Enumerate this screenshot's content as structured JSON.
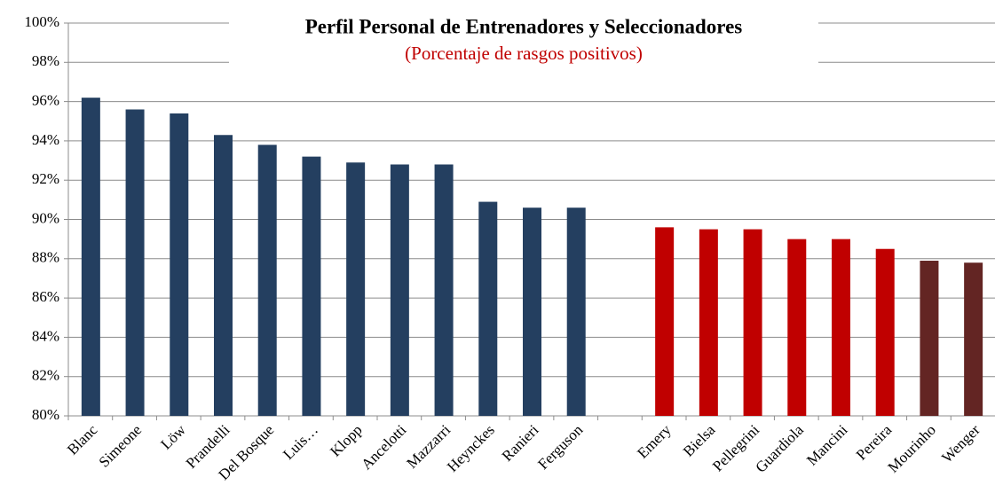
{
  "chart_data": {
    "type": "bar",
    "title": "Perfil Personal de Entrenadores y Seleccionadores",
    "subtitle": "(Porcentaje de rasgos positivos)",
    "categories": [
      "Blanc",
      "Simeone",
      "Löw",
      "Prandelli",
      "Del Bosque",
      "Luis…",
      "Klopp",
      "Ancelotti",
      "Mazzarri",
      "Heynckes",
      "Ranieri",
      "Ferguson",
      null,
      "Emery",
      "Bielsa",
      "Pellegrini",
      "Guardiola",
      "Mancini",
      "Pereira",
      "Mourinho",
      "Wenger"
    ],
    "values": [
      96.2,
      95.6,
      95.4,
      94.3,
      93.8,
      93.2,
      92.9,
      92.8,
      92.8,
      90.9,
      90.6,
      90.6,
      null,
      89.6,
      89.5,
      89.5,
      89.0,
      89.0,
      88.5,
      87.9,
      87.8
    ],
    "colors": [
      "#243f60",
      "#243f60",
      "#243f60",
      "#243f60",
      "#243f60",
      "#243f60",
      "#243f60",
      "#243f60",
      "#243f60",
      "#243f60",
      "#243f60",
      "#243f60",
      null,
      "#c00000",
      "#c00000",
      "#c00000",
      "#c00000",
      "#c00000",
      "#c00000",
      "#632523",
      "#632523"
    ],
    "ylim": [
      80,
      100
    ],
    "yticks": [
      {
        "value": 80,
        "label": "80%"
      },
      {
        "value": 82,
        "label": "82%"
      },
      {
        "value": 84,
        "label": "84%"
      },
      {
        "value": 86,
        "label": "86%"
      },
      {
        "value": 88,
        "label": "88%"
      },
      {
        "value": 90,
        "label": "90%"
      },
      {
        "value": 92,
        "label": "92%"
      },
      {
        "value": 94,
        "label": "94%"
      },
      {
        "value": 96,
        "label": "96%"
      },
      {
        "value": 98,
        "label": "98%"
      },
      {
        "value": 100,
        "label": "100%"
      }
    ],
    "grid": true
  }
}
